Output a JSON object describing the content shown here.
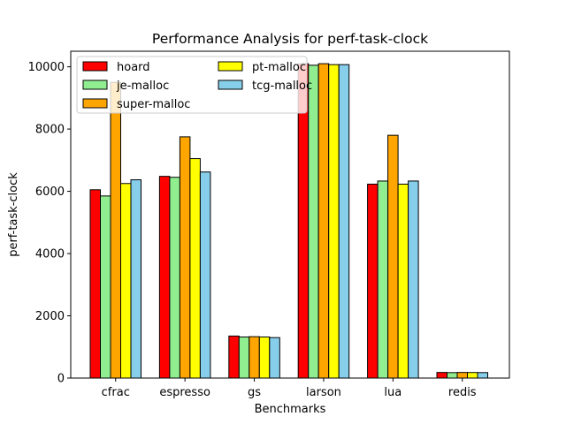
{
  "chart_data": {
    "type": "bar",
    "title": "Performance Analysis for perf-task-clock",
    "xlabel": "Benchmarks",
    "ylabel": "perf-task-clock",
    "categories": [
      "cfrac",
      "espresso",
      "gs",
      "larson",
      "lua",
      "redis"
    ],
    "ylim": [
      0,
      10500
    ],
    "yticks": [
      0,
      2000,
      4000,
      6000,
      8000,
      10000
    ],
    "grid": false,
    "legend": {
      "placement": "top-left",
      "columns": 2
    },
    "series": [
      {
        "name": "hoard",
        "color": "#ff0000",
        "values": [
          6050,
          6480,
          1350,
          10100,
          6230,
          180
        ]
      },
      {
        "name": "je-malloc",
        "color": "#90ee90",
        "values": [
          5850,
          6450,
          1320,
          10050,
          6330,
          175
        ]
      },
      {
        "name": "super-malloc",
        "color": "#ffa500",
        "values": [
          9500,
          7750,
          1330,
          10100,
          7800,
          180
        ]
      },
      {
        "name": "pt-malloc",
        "color": "#ffff00",
        "values": [
          6250,
          7050,
          1320,
          10070,
          6230,
          178
        ]
      },
      {
        "name": "tcg-malloc",
        "color": "#87ceeb",
        "values": [
          6370,
          6620,
          1300,
          10070,
          6330,
          176
        ]
      }
    ]
  }
}
